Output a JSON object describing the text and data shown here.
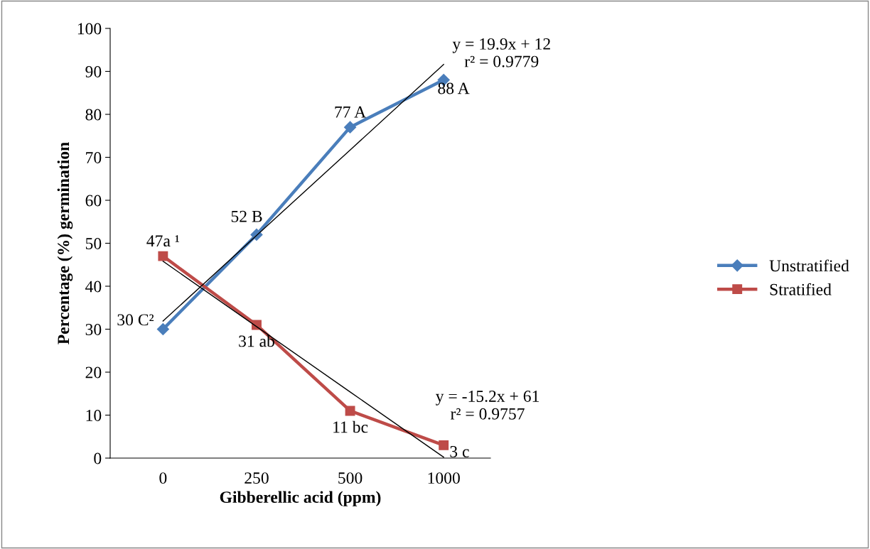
{
  "chart_data": {
    "type": "line",
    "xlabel": "Gibberellic acid (ppm)",
    "ylabel": "Percentage (%) germination",
    "categories": [
      "0",
      "250",
      "500",
      "1000"
    ],
    "ylim": [
      0,
      100
    ],
    "yticks": [
      0,
      10,
      20,
      30,
      40,
      50,
      60,
      70,
      80,
      90,
      100
    ],
    "grid": false,
    "legend": "right",
    "series": [
      {
        "name": "Unstratified",
        "color": "#4a7ebb",
        "marker": "diamond",
        "values": [
          30,
          52,
          77,
          88
        ],
        "value_labels": [
          "30 C²",
          "52 B",
          "77 A",
          "88 A"
        ]
      },
      {
        "name": "Stratified",
        "color": "#be4b48",
        "marker": "square",
        "values": [
          47,
          31,
          11,
          3
        ],
        "value_labels": [
          "47a ¹",
          "31 ab",
          "11 bc",
          "3 c"
        ]
      },
      {
        "type": "line",
        "color": "#000000",
        "marker": "none",
        "values": [
          31.9,
          51.8,
          71.7,
          91.6
        ]
      },
      {
        "type": "line",
        "color": "#000000",
        "marker": "none",
        "values": [
          45.8,
          30.6,
          15.4,
          0.2
        ]
      }
    ],
    "annotations": [
      "y = 19.9x + 12\nr² = 0.9779",
      "y = -15.2x + 61\nr² = 0.9757"
    ]
  }
}
